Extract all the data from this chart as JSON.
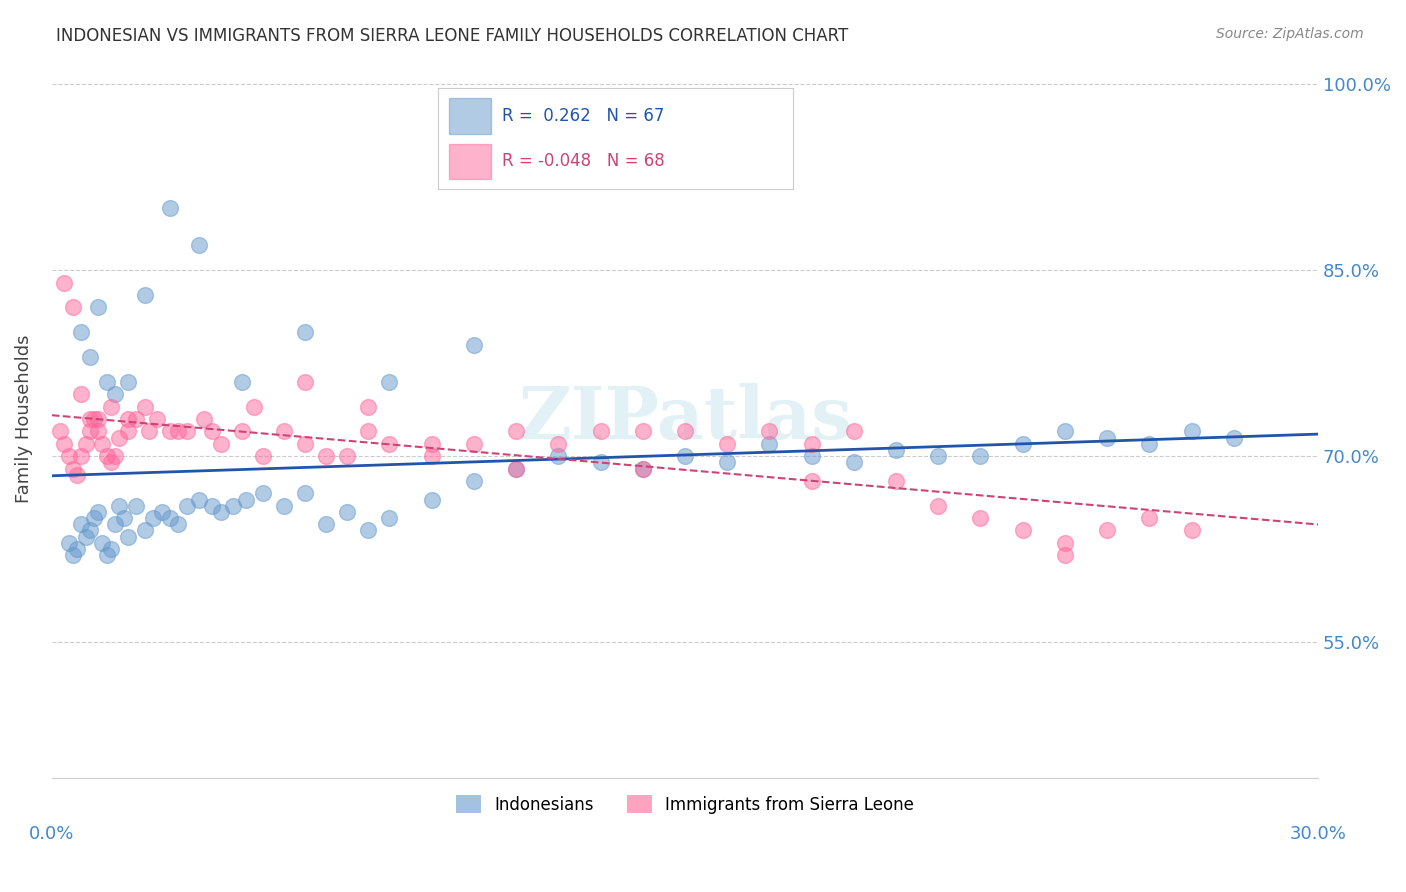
{
  "title": "INDONESIAN VS IMMIGRANTS FROM SIERRA LEONE FAMILY HOUSEHOLDS CORRELATION CHART",
  "source": "Source: ZipAtlas.com",
  "ylabel": "Family Households",
  "xlim": [
    0.0,
    0.3
  ],
  "ylim": [
    0.44,
    1.02
  ],
  "indonesian_color": "#6699cc",
  "sierraleone_color": "#ff6699",
  "line_color_blue": "#2255aa",
  "line_color_pink": "#cc4477",
  "watermark": "ZIPatlas",
  "background_color": "#ffffff",
  "grid_color": "#cccccc",
  "axis_label_color": "#4488cc",
  "title_color": "#333333",
  "ytick_vals": [
    0.55,
    0.7,
    0.85,
    1.0
  ],
  "ytick_labels": [
    "55.0%",
    "70.0%",
    "85.0%",
    "100.0%"
  ],
  "indonesian_x": [
    0.004,
    0.005,
    0.006,
    0.007,
    0.008,
    0.009,
    0.01,
    0.011,
    0.012,
    0.013,
    0.014,
    0.015,
    0.016,
    0.017,
    0.018,
    0.02,
    0.022,
    0.024,
    0.026,
    0.028,
    0.03,
    0.032,
    0.035,
    0.038,
    0.04,
    0.043,
    0.046,
    0.05,
    0.055,
    0.06,
    0.065,
    0.07,
    0.075,
    0.08,
    0.09,
    0.1,
    0.11,
    0.12,
    0.13,
    0.14,
    0.15,
    0.16,
    0.17,
    0.18,
    0.19,
    0.2,
    0.21,
    0.22,
    0.23,
    0.24,
    0.25,
    0.26,
    0.27,
    0.28,
    0.007,
    0.009,
    0.011,
    0.013,
    0.015,
    0.018,
    0.022,
    0.028,
    0.035,
    0.045,
    0.06,
    0.08,
    0.1
  ],
  "indonesian_y": [
    0.63,
    0.62,
    0.625,
    0.645,
    0.635,
    0.64,
    0.65,
    0.655,
    0.63,
    0.62,
    0.625,
    0.645,
    0.66,
    0.65,
    0.635,
    0.66,
    0.64,
    0.65,
    0.655,
    0.65,
    0.645,
    0.66,
    0.665,
    0.66,
    0.655,
    0.66,
    0.665,
    0.67,
    0.66,
    0.67,
    0.645,
    0.655,
    0.64,
    0.65,
    0.665,
    0.68,
    0.69,
    0.7,
    0.695,
    0.69,
    0.7,
    0.695,
    0.71,
    0.7,
    0.695,
    0.705,
    0.7,
    0.7,
    0.71,
    0.72,
    0.715,
    0.71,
    0.72,
    0.715,
    0.8,
    0.78,
    0.82,
    0.76,
    0.75,
    0.76,
    0.83,
    0.9,
    0.87,
    0.76,
    0.8,
    0.76,
    0.79
  ],
  "sierraleone_x": [
    0.002,
    0.003,
    0.004,
    0.005,
    0.006,
    0.007,
    0.008,
    0.009,
    0.01,
    0.011,
    0.012,
    0.013,
    0.014,
    0.015,
    0.016,
    0.018,
    0.02,
    0.022,
    0.025,
    0.028,
    0.032,
    0.036,
    0.04,
    0.045,
    0.05,
    0.055,
    0.06,
    0.065,
    0.07,
    0.075,
    0.08,
    0.09,
    0.1,
    0.11,
    0.12,
    0.13,
    0.14,
    0.15,
    0.16,
    0.17,
    0.18,
    0.19,
    0.2,
    0.21,
    0.22,
    0.23,
    0.24,
    0.25,
    0.26,
    0.27,
    0.003,
    0.005,
    0.007,
    0.009,
    0.011,
    0.014,
    0.018,
    0.023,
    0.03,
    0.038,
    0.048,
    0.06,
    0.075,
    0.09,
    0.11,
    0.14,
    0.18,
    0.24
  ],
  "sierraleone_y": [
    0.72,
    0.71,
    0.7,
    0.69,
    0.685,
    0.7,
    0.71,
    0.72,
    0.73,
    0.72,
    0.71,
    0.7,
    0.695,
    0.7,
    0.715,
    0.72,
    0.73,
    0.74,
    0.73,
    0.72,
    0.72,
    0.73,
    0.71,
    0.72,
    0.7,
    0.72,
    0.71,
    0.7,
    0.7,
    0.72,
    0.71,
    0.71,
    0.71,
    0.72,
    0.71,
    0.72,
    0.72,
    0.72,
    0.71,
    0.72,
    0.71,
    0.72,
    0.68,
    0.66,
    0.65,
    0.64,
    0.63,
    0.64,
    0.65,
    0.64,
    0.84,
    0.82,
    0.75,
    0.73,
    0.73,
    0.74,
    0.73,
    0.72,
    0.72,
    0.72,
    0.74,
    0.76,
    0.74,
    0.7,
    0.69,
    0.69,
    0.68,
    0.62
  ]
}
